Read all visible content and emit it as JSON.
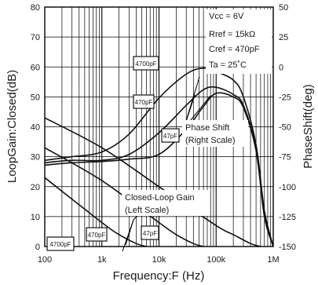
{
  "chart_data": {
    "type": "line",
    "title": "",
    "xlabel": "Frequency:F (Hz)",
    "ylabel_left": "LoopGain:Closed(dB)",
    "ylabel_right": "PhaseShift(deg)",
    "x_scale": "log",
    "xlim": [
      100,
      1000000
    ],
    "ylim_left": [
      0,
      80
    ],
    "ylim_right": [
      -150,
      50
    ],
    "grid": true,
    "x_ticks": [
      {
        "value": 100,
        "label": "100"
      },
      {
        "value": 1000,
        "label": "1k"
      },
      {
        "value": 10000,
        "label": "10k"
      },
      {
        "value": 100000,
        "label": "100k"
      },
      {
        "value": 1000000,
        "label": "1M"
      }
    ],
    "y_left_ticks": [
      {
        "value": 0,
        "label": "0"
      },
      {
        "value": 10,
        "label": "10"
      },
      {
        "value": 20,
        "label": "20"
      },
      {
        "value": 30,
        "label": "30"
      },
      {
        "value": 40,
        "label": "40"
      },
      {
        "value": 50,
        "label": "50"
      },
      {
        "value": 60,
        "label": "60"
      },
      {
        "value": 70,
        "label": "70"
      },
      {
        "value": 80,
        "label": "80"
      }
    ],
    "y_right_ticks": [
      {
        "value": 50,
        "label": "50"
      },
      {
        "value": 25,
        "label": "25"
      },
      {
        "value": 0,
        "label": "0"
      },
      {
        "value": -25,
        "label": "-25"
      },
      {
        "value": -50,
        "label": "-50"
      },
      {
        "value": -75,
        "label": "-75"
      },
      {
        "value": -100,
        "label": "-100"
      },
      {
        "value": -125,
        "label": "-125"
      },
      {
        "value": -150,
        "label": "-150"
      }
    ],
    "conditions": [
      "Vcc = 6V",
      "Rref = 15kΩ",
      "Cref = 470pF",
      "Ta = 25˚C"
    ],
    "annotations": [
      {
        "lines": [
          "Phase Shift",
          "(Right Scale)"
        ]
      },
      {
        "lines": [
          "Closed-Loop Gain",
          "(Left Scale)"
        ]
      }
    ],
    "series": [
      {
        "name": "4700pF",
        "group": "phase",
        "axis": "right",
        "x": [
          100,
          300,
          1000,
          3000,
          10000,
          30000,
          60000,
          100000,
          200000,
          300000,
          500000,
          700000,
          1000000
        ],
        "y": [
          -78,
          -75,
          -71,
          -56,
          -26,
          -6,
          -1,
          -4,
          -11,
          -25,
          -65,
          -120,
          -150
        ]
      },
      {
        "name": "470pF",
        "group": "phase",
        "axis": "right",
        "x": [
          100,
          300,
          1000,
          3000,
          10000,
          30000,
          60000,
          100000,
          200000,
          300000,
          500000,
          700000,
          1000000
        ],
        "y": [
          -80,
          -78,
          -78,
          -73,
          -55,
          -32,
          -19,
          -17,
          -23,
          -32,
          -68,
          -122,
          -150
        ]
      },
      {
        "name": "47pF",
        "group": "phase",
        "axis": "right",
        "x": [
          100,
          300,
          1000,
          3000,
          10000,
          30000,
          60000,
          100000,
          200000,
          300000,
          500000,
          700000,
          1000000
        ],
        "y": [
          -82,
          -80,
          -79,
          -77,
          -73,
          -52,
          -33,
          -22,
          -25,
          -34,
          -70,
          -125,
          -150
        ]
      },
      {
        "name": "4700pF",
        "group": "gain",
        "axis": "left",
        "x": [
          100,
          1000,
          2000,
          4000,
          6000
        ],
        "y": [
          23,
          8,
          4,
          1,
          0
        ]
      },
      {
        "name": "470pF",
        "group": "gain",
        "axis": "left",
        "x": [
          100,
          1000,
          10000,
          20000,
          40000,
          60000
        ],
        "y": [
          33,
          22,
          8,
          4,
          1,
          0
        ]
      },
      {
        "name": "47pF",
        "group": "gain",
        "axis": "left",
        "x": [
          100,
          1000,
          10000,
          100000,
          200000,
          400000,
          600000
        ],
        "y": [
          43,
          33,
          20,
          7,
          4,
          1,
          0
        ]
      }
    ]
  }
}
